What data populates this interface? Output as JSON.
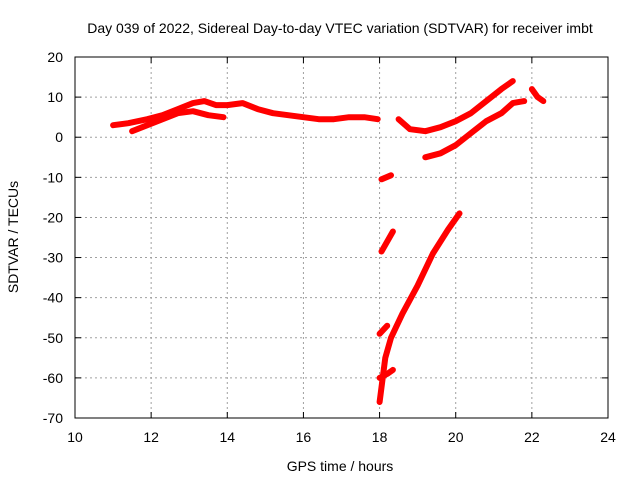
{
  "chart_data": {
    "type": "scatter",
    "title": "Day 039 of 2022, Sidereal Day-to-day VTEC variation (SDTVAR) for receiver imbt",
    "xlabel": "GPS time / hours",
    "ylabel": "SDTVAR / TECUs",
    "xlim": [
      10,
      24
    ],
    "ylim": [
      -70,
      20
    ],
    "xticks": [
      "10",
      "12",
      "14",
      "16",
      "18",
      "20",
      "22",
      "24"
    ],
    "yticks": [
      "-70",
      "-60",
      "-50",
      "-40",
      "-30",
      "-20",
      "-10",
      "0",
      "10",
      "20"
    ],
    "grid": true,
    "series_color": "#ff0000",
    "series": [
      {
        "name": "arc-1",
        "x": [
          11.0,
          11.4,
          11.9,
          12.3,
          12.7,
          13.1,
          13.4,
          13.7,
          14.0,
          14.4,
          14.8,
          15.2,
          15.6,
          16.0,
          16.4,
          16.8,
          17.2,
          17.6,
          17.95
        ],
        "y": [
          3,
          3.5,
          4.5,
          5.5,
          7,
          8.5,
          9,
          8,
          8,
          8.5,
          7,
          6,
          5.5,
          5,
          4.5,
          4.5,
          5,
          5,
          4.5
        ]
      },
      {
        "name": "arc-2",
        "x": [
          11.5,
          11.9,
          12.3,
          12.7,
          13.1,
          13.5,
          13.9
        ],
        "y": [
          1.5,
          3,
          4.5,
          6,
          6.5,
          5.5,
          5
        ]
      },
      {
        "name": "arc-3",
        "x": [
          18.05,
          18.3
        ],
        "y": [
          -10.5,
          -9.5
        ]
      },
      {
        "name": "arc-4",
        "x": [
          18.05,
          18.35
        ],
        "y": [
          -28.5,
          -23.5
        ]
      },
      {
        "name": "arc-5",
        "x": [
          18.0,
          18.15,
          18.3,
          18.6,
          19.0,
          19.4,
          19.8,
          20.1
        ],
        "y": [
          -66,
          -55,
          -50,
          -44,
          -37,
          -29,
          -23,
          -19
        ]
      },
      {
        "name": "arc-6",
        "x": [
          18.0,
          18.2,
          18.35
        ],
        "y": [
          -60,
          -59,
          -58
        ]
      },
      {
        "name": "arc-7",
        "x": [
          18.0,
          18.2
        ],
        "y": [
          -49,
          -47
        ]
      },
      {
        "name": "arc-8",
        "x": [
          18.5,
          18.8,
          19.2,
          19.6,
          20.0,
          20.4,
          20.8,
          21.2,
          21.5
        ],
        "y": [
          4.5,
          2,
          1.5,
          2.5,
          4,
          6,
          9,
          12,
          14
        ]
      },
      {
        "name": "arc-9",
        "x": [
          19.2,
          19.6,
          20.0,
          20.4,
          20.8,
          21.2,
          21.5,
          21.8
        ],
        "y": [
          -5,
          -4,
          -2,
          1,
          4,
          6,
          8.5,
          9
        ]
      },
      {
        "name": "arc-10",
        "x": [
          22.0,
          22.15,
          22.3
        ],
        "y": [
          12,
          10,
          9
        ]
      }
    ]
  }
}
